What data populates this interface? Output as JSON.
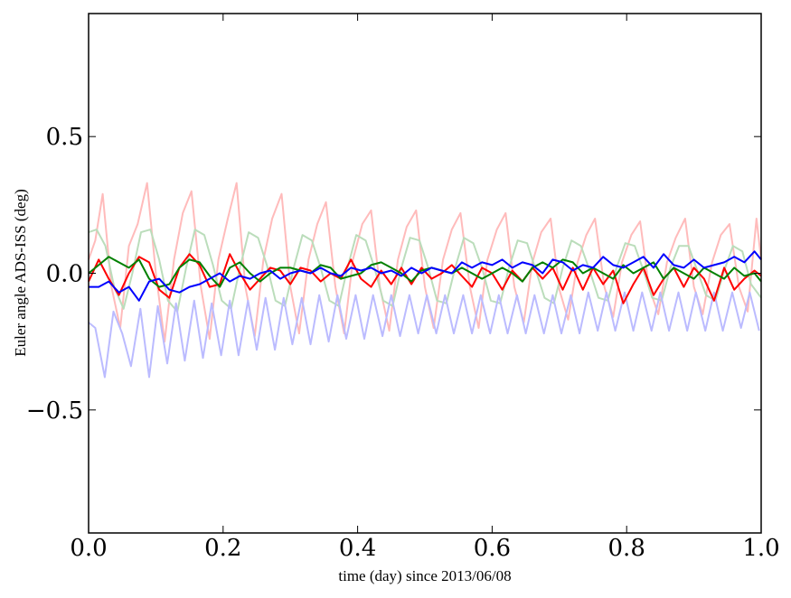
{
  "chart_data": {
    "type": "line",
    "xlabel": "time (day) since 2013/06/08",
    "ylabel": "Euler angle ADS-ISS (deg)",
    "xlim": [
      0.0,
      1.0
    ],
    "ylim": [
      -0.95,
      0.95
    ],
    "xticks": [
      0.0,
      0.2,
      0.4,
      0.6,
      0.8,
      1.0
    ],
    "xtick_labels": [
      "0.0",
      "0.2",
      "0.4",
      "0.6",
      "0.8",
      "1.0"
    ],
    "yticks": [
      -0.5,
      0.0,
      0.5
    ],
    "ytick_labels": [
      "−0.5",
      "0.0",
      "0.5"
    ],
    "grid": false,
    "series": [
      {
        "color": "#ffbbbb",
        "x": [
          0.0,
          0.01,
          0.021,
          0.034,
          0.047,
          0.06,
          0.073,
          0.087,
          0.1,
          0.113,
          0.127,
          0.14,
          0.153,
          0.167,
          0.18,
          0.193,
          0.207,
          0.22,
          0.233,
          0.247,
          0.26,
          0.273,
          0.287,
          0.3,
          0.313,
          0.327,
          0.34,
          0.353,
          0.367,
          0.38,
          0.393,
          0.407,
          0.42,
          0.433,
          0.447,
          0.46,
          0.473,
          0.487,
          0.5,
          0.513,
          0.527,
          0.54,
          0.553,
          0.567,
          0.58,
          0.593,
          0.607,
          0.62,
          0.633,
          0.647,
          0.66,
          0.673,
          0.687,
          0.7,
          0.713,
          0.727,
          0.74,
          0.753,
          0.767,
          0.78,
          0.793,
          0.807,
          0.82,
          0.833,
          0.847,
          0.86,
          0.873,
          0.887,
          0.9,
          0.913,
          0.927,
          0.94,
          0.953,
          0.967,
          0.98,
          0.993,
          1.0
        ],
        "y": [
          0.05,
          0.12,
          0.29,
          -0.05,
          -0.2,
          0.1,
          0.18,
          0.33,
          0.0,
          -0.25,
          0.05,
          0.22,
          0.3,
          -0.05,
          -0.24,
          0.05,
          0.2,
          0.33,
          -0.05,
          -0.23,
          0.05,
          0.2,
          0.29,
          -0.05,
          -0.22,
          0.05,
          0.18,
          0.26,
          -0.05,
          -0.22,
          0.05,
          0.18,
          0.23,
          -0.05,
          -0.21,
          0.05,
          0.17,
          0.23,
          -0.05,
          -0.2,
          0.05,
          0.16,
          0.22,
          -0.05,
          -0.2,
          0.05,
          0.16,
          0.22,
          -0.05,
          -0.18,
          0.04,
          0.15,
          0.2,
          -0.06,
          -0.17,
          0.04,
          0.14,
          0.2,
          -0.05,
          -0.16,
          0.04,
          0.14,
          0.19,
          -0.05,
          -0.15,
          0.04,
          0.13,
          0.2,
          -0.05,
          -0.15,
          0.04,
          0.14,
          0.18,
          -0.05,
          -0.14,
          0.2,
          0.05
        ]
      },
      {
        "color": "#bbddbb",
        "x": [
          0.0,
          0.012,
          0.025,
          0.038,
          0.052,
          0.065,
          0.078,
          0.092,
          0.105,
          0.118,
          0.132,
          0.145,
          0.158,
          0.172,
          0.185,
          0.198,
          0.212,
          0.225,
          0.238,
          0.252,
          0.265,
          0.278,
          0.292,
          0.305,
          0.318,
          0.332,
          0.345,
          0.358,
          0.372,
          0.385,
          0.398,
          0.412,
          0.425,
          0.438,
          0.452,
          0.465,
          0.478,
          0.492,
          0.505,
          0.518,
          0.532,
          0.545,
          0.558,
          0.572,
          0.585,
          0.598,
          0.612,
          0.625,
          0.638,
          0.652,
          0.665,
          0.678,
          0.692,
          0.705,
          0.718,
          0.732,
          0.745,
          0.758,
          0.772,
          0.785,
          0.798,
          0.812,
          0.825,
          0.838,
          0.852,
          0.865,
          0.878,
          0.892,
          0.905,
          0.918,
          0.932,
          0.945,
          0.958,
          0.972,
          0.985,
          1.0
        ],
        "y": [
          0.15,
          0.16,
          0.1,
          -0.05,
          -0.13,
          0.0,
          0.15,
          0.16,
          0.05,
          -0.1,
          -0.14,
          0.02,
          0.16,
          0.14,
          0.03,
          -0.1,
          -0.13,
          0.02,
          0.15,
          0.13,
          0.03,
          -0.1,
          -0.12,
          0.02,
          0.14,
          0.12,
          0.02,
          -0.1,
          -0.12,
          0.02,
          0.14,
          0.12,
          0.02,
          -0.1,
          -0.12,
          0.02,
          0.13,
          0.12,
          0.02,
          -0.1,
          -0.11,
          0.02,
          0.13,
          0.11,
          0.02,
          -0.1,
          -0.11,
          0.02,
          0.12,
          0.11,
          0.01,
          -0.09,
          -0.11,
          0.02,
          0.12,
          0.1,
          0.01,
          -0.09,
          -0.1,
          0.02,
          0.11,
          0.1,
          0.01,
          -0.09,
          -0.1,
          0.02,
          0.1,
          0.1,
          0.01,
          -0.08,
          -0.1,
          0.01,
          0.1,
          0.08,
          -0.04,
          -0.09
        ]
      },
      {
        "color": "#bbbbff",
        "x": [
          0.0,
          0.01,
          0.024,
          0.037,
          0.05,
          0.063,
          0.077,
          0.09,
          0.103,
          0.117,
          0.13,
          0.143,
          0.157,
          0.17,
          0.183,
          0.197,
          0.21,
          0.223,
          0.237,
          0.25,
          0.263,
          0.277,
          0.29,
          0.303,
          0.317,
          0.33,
          0.343,
          0.357,
          0.37,
          0.383,
          0.397,
          0.41,
          0.423,
          0.437,
          0.45,
          0.463,
          0.477,
          0.49,
          0.503,
          0.517,
          0.53,
          0.543,
          0.557,
          0.57,
          0.583,
          0.597,
          0.61,
          0.623,
          0.637,
          0.65,
          0.663,
          0.677,
          0.69,
          0.703,
          0.717,
          0.73,
          0.743,
          0.757,
          0.77,
          0.783,
          0.797,
          0.81,
          0.823,
          0.837,
          0.85,
          0.863,
          0.877,
          0.89,
          0.903,
          0.917,
          0.93,
          0.943,
          0.957,
          0.97,
          0.983,
          0.997
        ],
        "y": [
          -0.18,
          -0.2,
          -0.38,
          -0.14,
          -0.22,
          -0.34,
          -0.13,
          -0.38,
          -0.12,
          -0.33,
          -0.11,
          -0.32,
          -0.1,
          -0.31,
          -0.11,
          -0.3,
          -0.1,
          -0.3,
          -0.1,
          -0.28,
          -0.09,
          -0.28,
          -0.09,
          -0.26,
          -0.09,
          -0.26,
          -0.08,
          -0.25,
          -0.08,
          -0.24,
          -0.08,
          -0.24,
          -0.08,
          -0.23,
          -0.08,
          -0.23,
          -0.08,
          -0.22,
          -0.08,
          -0.22,
          -0.08,
          -0.22,
          -0.08,
          -0.22,
          -0.08,
          -0.22,
          -0.08,
          -0.22,
          -0.08,
          -0.22,
          -0.08,
          -0.22,
          -0.08,
          -0.22,
          -0.08,
          -0.22,
          -0.07,
          -0.21,
          -0.07,
          -0.21,
          -0.07,
          -0.21,
          -0.07,
          -0.21,
          -0.07,
          -0.21,
          -0.07,
          -0.21,
          -0.07,
          -0.21,
          -0.07,
          -0.21,
          -0.07,
          -0.2,
          -0.07,
          -0.21
        ]
      },
      {
        "color": "#ff0000",
        "x": [
          0.0,
          0.015,
          0.03,
          0.045,
          0.06,
          0.075,
          0.09,
          0.105,
          0.12,
          0.135,
          0.15,
          0.165,
          0.18,
          0.195,
          0.21,
          0.225,
          0.24,
          0.255,
          0.27,
          0.285,
          0.3,
          0.315,
          0.33,
          0.345,
          0.36,
          0.375,
          0.39,
          0.405,
          0.42,
          0.435,
          0.45,
          0.465,
          0.48,
          0.495,
          0.51,
          0.525,
          0.54,
          0.555,
          0.57,
          0.585,
          0.6,
          0.615,
          0.63,
          0.645,
          0.66,
          0.675,
          0.69,
          0.705,
          0.72,
          0.735,
          0.75,
          0.765,
          0.78,
          0.795,
          0.81,
          0.825,
          0.84,
          0.855,
          0.87,
          0.885,
          0.9,
          0.915,
          0.93,
          0.945,
          0.96,
          0.975,
          0.99,
          1.0
        ],
        "y": [
          -0.03,
          0.05,
          -0.02,
          -0.08,
          0.0,
          0.06,
          0.04,
          -0.06,
          -0.09,
          0.02,
          0.07,
          0.03,
          -0.05,
          -0.04,
          0.07,
          0.0,
          -0.06,
          -0.02,
          0.02,
          0.01,
          -0.04,
          0.02,
          0.01,
          -0.03,
          0.0,
          -0.02,
          0.05,
          -0.02,
          -0.05,
          0.01,
          -0.04,
          0.02,
          -0.04,
          0.02,
          -0.02,
          0.0,
          0.03,
          -0.01,
          -0.05,
          0.02,
          0.0,
          -0.06,
          0.01,
          -0.03,
          0.02,
          -0.02,
          0.02,
          -0.06,
          0.02,
          -0.06,
          0.02,
          -0.04,
          0.01,
          -0.11,
          -0.04,
          0.02,
          -0.08,
          -0.02,
          0.02,
          -0.05,
          0.02,
          -0.02,
          -0.1,
          0.02,
          -0.06,
          -0.02,
          0.01,
          -0.01
        ]
      },
      {
        "color": "#008000",
        "x": [
          0.0,
          0.015,
          0.03,
          0.045,
          0.06,
          0.075,
          0.09,
          0.105,
          0.12,
          0.135,
          0.15,
          0.165,
          0.18,
          0.195,
          0.21,
          0.225,
          0.24,
          0.255,
          0.27,
          0.285,
          0.3,
          0.315,
          0.33,
          0.345,
          0.36,
          0.375,
          0.39,
          0.405,
          0.42,
          0.435,
          0.45,
          0.465,
          0.48,
          0.495,
          0.51,
          0.525,
          0.54,
          0.555,
          0.57,
          0.585,
          0.6,
          0.615,
          0.63,
          0.645,
          0.66,
          0.675,
          0.69,
          0.705,
          0.72,
          0.735,
          0.75,
          0.765,
          0.78,
          0.795,
          0.81,
          0.825,
          0.84,
          0.855,
          0.87,
          0.885,
          0.9,
          0.915,
          0.93,
          0.945,
          0.96,
          0.975,
          0.99,
          1.0
        ],
        "y": [
          0.0,
          0.03,
          0.06,
          0.04,
          0.02,
          0.05,
          -0.02,
          -0.05,
          -0.04,
          0.02,
          0.05,
          0.04,
          -0.01,
          -0.05,
          0.02,
          0.04,
          0.0,
          -0.03,
          0.0,
          0.02,
          0.02,
          0.01,
          0.0,
          0.03,
          0.02,
          -0.02,
          -0.01,
          0.0,
          0.03,
          0.04,
          0.02,
          0.0,
          -0.03,
          0.01,
          0.02,
          0.01,
          0.0,
          0.02,
          0.0,
          -0.02,
          0.0,
          0.02,
          0.0,
          -0.03,
          0.02,
          0.04,
          0.02,
          0.05,
          0.04,
          0.0,
          0.02,
          0.0,
          -0.02,
          0.03,
          0.0,
          0.02,
          0.04,
          -0.02,
          0.02,
          0.0,
          -0.02,
          0.02,
          0.0,
          -0.02,
          0.02,
          -0.01,
          0.0,
          -0.03
        ]
      },
      {
        "color": "#0000ff",
        "x": [
          0.0,
          0.015,
          0.03,
          0.045,
          0.06,
          0.075,
          0.09,
          0.105,
          0.12,
          0.135,
          0.15,
          0.165,
          0.18,
          0.195,
          0.21,
          0.225,
          0.24,
          0.255,
          0.27,
          0.285,
          0.3,
          0.315,
          0.33,
          0.345,
          0.36,
          0.375,
          0.39,
          0.405,
          0.42,
          0.435,
          0.45,
          0.465,
          0.48,
          0.495,
          0.51,
          0.525,
          0.54,
          0.555,
          0.57,
          0.585,
          0.6,
          0.615,
          0.63,
          0.645,
          0.66,
          0.675,
          0.69,
          0.705,
          0.72,
          0.735,
          0.75,
          0.765,
          0.78,
          0.795,
          0.81,
          0.825,
          0.84,
          0.855,
          0.87,
          0.885,
          0.9,
          0.915,
          0.93,
          0.945,
          0.96,
          0.975,
          0.99,
          1.0
        ],
        "y": [
          -0.05,
          -0.05,
          -0.03,
          -0.07,
          -0.05,
          -0.1,
          -0.03,
          -0.02,
          -0.06,
          -0.07,
          -0.05,
          -0.04,
          -0.02,
          0.0,
          -0.03,
          -0.01,
          -0.02,
          0.0,
          0.01,
          -0.02,
          0.0,
          0.01,
          0.0,
          0.02,
          0.0,
          -0.01,
          0.02,
          0.01,
          0.02,
          0.0,
          0.01,
          -0.01,
          0.02,
          0.0,
          0.02,
          0.01,
          0.0,
          0.04,
          0.02,
          0.04,
          0.03,
          0.05,
          0.02,
          0.04,
          0.03,
          0.0,
          0.05,
          0.04,
          0.01,
          0.03,
          0.02,
          0.06,
          0.03,
          0.02,
          0.04,
          0.06,
          0.02,
          0.07,
          0.03,
          0.02,
          0.05,
          0.02,
          0.03,
          0.04,
          0.06,
          0.04,
          0.08,
          0.05
        ]
      }
    ]
  }
}
